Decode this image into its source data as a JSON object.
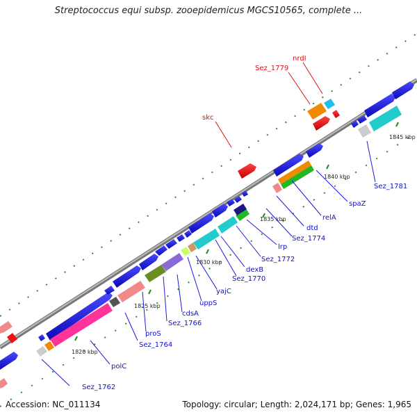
{
  "title": "Streptococcus equi subsp. zooepidemicus MGCS10565, complete ...",
  "accession_text": "Accession: NC_011134",
  "summary_text": "Topology: circular; Length: 2,024,171 bp; Genes: 1,965",
  "colors": {
    "backbone": "#8a8a8a",
    "blue_gene": "#1a1adc",
    "red_gene": "#ee1111",
    "tick": "#228822",
    "label_blue": "#1010cc",
    "label_red": "#dd1111"
  },
  "kbp_labels": [
    "1820 kbp",
    "1825 kbp",
    "1830 kbp",
    "1835 kbp",
    "1840 kbp",
    "1845 kbp"
  ],
  "gene_labels_blue": [
    "Sez_1762",
    "polC",
    "Sez_1764",
    "proS",
    "Sez_1766",
    "cdsA",
    "uppS",
    "yajC",
    "Sez_1770",
    "dexB",
    "Sez_1772",
    "lrp",
    "Sez_1774",
    "dtd",
    "relA",
    "spaZ",
    "Sez_1781"
  ],
  "gene_labels_red": [
    "skc",
    "Sez_1779",
    "nrdI"
  ]
}
